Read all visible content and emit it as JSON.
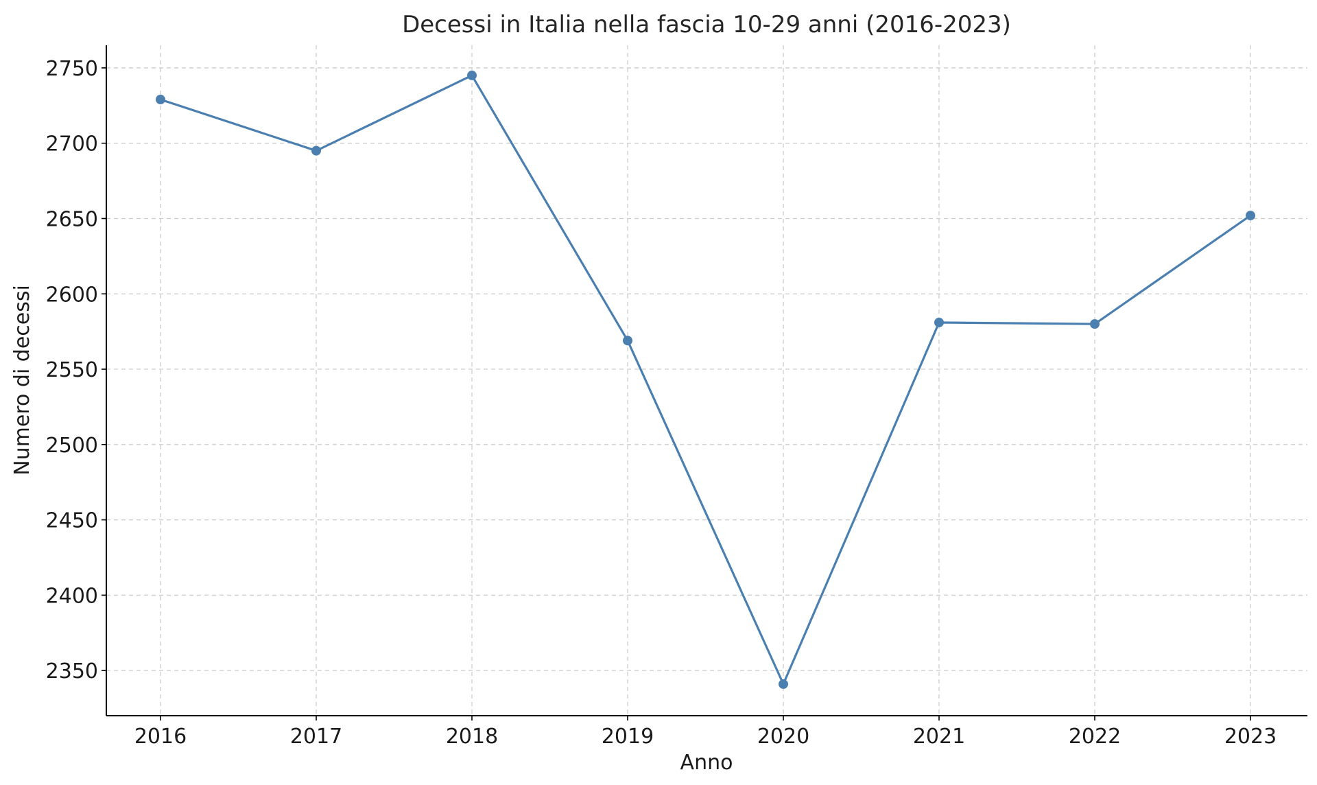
{
  "chart_data": {
    "type": "line",
    "title": "Decessi in Italia nella fascia 10-29 anni (2016-2023)",
    "xlabel": "Anno",
    "ylabel": "Numero di decessi",
    "x": [
      "2016",
      "2017",
      "2018",
      "2019",
      "2020",
      "2021",
      "2022",
      "2023"
    ],
    "series": [
      {
        "values": [
          2729,
          2695,
          2745,
          2569,
          2341,
          2581,
          2580,
          2652
        ],
        "color": "#4a7fb0"
      }
    ],
    "ylim": [
      2320,
      2765
    ],
    "yticks": [
      2350,
      2400,
      2450,
      2500,
      2550,
      2600,
      2650,
      2700,
      2750
    ],
    "grid": true,
    "marker": "circle"
  }
}
